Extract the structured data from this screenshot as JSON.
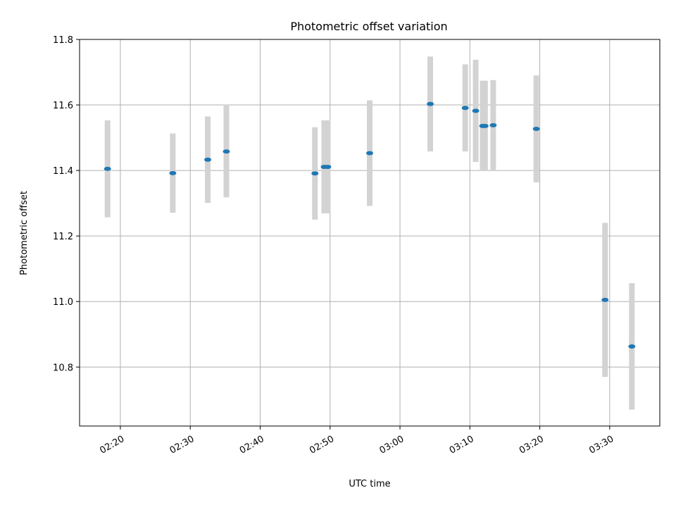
{
  "chart_data": {
    "type": "scatter",
    "title": "Photometric offset variation",
    "xlabel": "UTC time",
    "ylabel": "Photometric offset",
    "grid": true,
    "x_ticks": [
      "02:20",
      "02:30",
      "02:40",
      "02:50",
      "03:00",
      "03:10",
      "03:20",
      "03:30"
    ],
    "y_ticks": [
      "10.8",
      "11.0",
      "11.2",
      "11.4",
      "11.6",
      "11.8"
    ],
    "xlim": [
      "02:14:10",
      "03:37:10"
    ],
    "ylim": [
      10.62,
      11.8
    ],
    "colors": {
      "point": "#1f77b4",
      "errorbar": "#d3d3d3"
    },
    "series": [
      {
        "points": [
          {
            "x": "02:18:10",
            "y": 11.405,
            "err": 0.148
          },
          {
            "x": "02:27:30",
            "y": 11.392,
            "err": 0.121
          },
          {
            "x": "02:32:30",
            "y": 11.433,
            "err": 0.132
          },
          {
            "x": "02:35:10",
            "y": 11.458,
            "err": 0.14
          },
          {
            "x": "02:47:50",
            "y": 11.391,
            "err": 0.141
          },
          {
            "x": "02:49:10",
            "y": 11.411,
            "err": 0.142
          },
          {
            "x": "02:49:40",
            "y": 11.411,
            "err": 0.142
          },
          {
            "x": "02:55:40",
            "y": 11.453,
            "err": 0.161
          },
          {
            "x": "03:04:20",
            "y": 11.603,
            "err": 0.145
          },
          {
            "x": "03:09:20",
            "y": 11.591,
            "err": 0.133
          },
          {
            "x": "03:10:50",
            "y": 11.582,
            "err": 0.156
          },
          {
            "x": "03:11:50",
            "y": 11.536,
            "err": 0.138
          },
          {
            "x": "03:12:10",
            "y": 11.536,
            "err": 0.138
          },
          {
            "x": "03:13:20",
            "y": 11.538,
            "err": 0.138
          },
          {
            "x": "03:19:30",
            "y": 11.527,
            "err": 0.163
          },
          {
            "x": "03:29:20",
            "y": 11.005,
            "err": 0.235
          },
          {
            "x": "03:33:10",
            "y": 10.863,
            "err": 0.193
          }
        ]
      }
    ]
  }
}
